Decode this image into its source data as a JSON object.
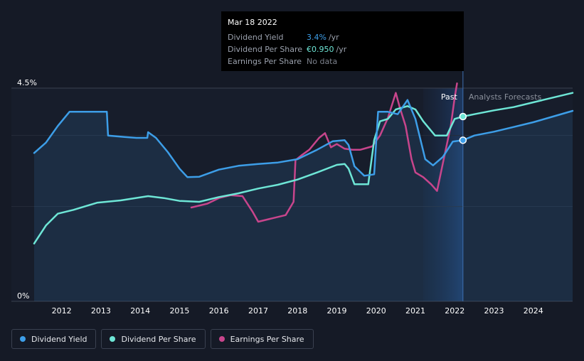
{
  "tooltip": {
    "date": "Mar 18 2022",
    "rows": [
      {
        "name": "Dividend Yield",
        "value": "3.4%",
        "unit": "/yr",
        "color": "#3d9ee8"
      },
      {
        "name": "Dividend Per Share",
        "value": "€0.950",
        "unit": "/yr",
        "color": "#6ee6d6"
      },
      {
        "name": "Earnings Per Share",
        "value": "No data",
        "unit": "",
        "color": "#7c818c"
      }
    ]
  },
  "regions": {
    "past": "Past",
    "forecast": "Analysts Forecasts"
  },
  "legend": [
    {
      "label": "Dividend Yield",
      "color": "#3d9ee8"
    },
    {
      "label": "Dividend Per Share",
      "color": "#6ee6d6"
    },
    {
      "label": "Earnings Per Share",
      "color": "#c8458c"
    }
  ],
  "chart_data": {
    "type": "line",
    "y_tick_labels": [
      "4.5%",
      "0%"
    ],
    "ylim": [
      0,
      4.5
    ],
    "x_tick_labels": [
      "2012",
      "2013",
      "2014",
      "2015",
      "2016",
      "2017",
      "2018",
      "2019",
      "2020",
      "2021",
      "2022",
      "2023",
      "2024"
    ],
    "xlim": [
      2011.3,
      2025.0
    ],
    "cursor_x": 2022.21,
    "forecast_start": 2022.21,
    "past_band_start": 2021.2,
    "series": [
      {
        "name": "Dividend Yield",
        "color": "#3d9ee8",
        "fill": true,
        "values": [
          [
            2011.3,
            3.13
          ],
          [
            2011.6,
            3.35
          ],
          [
            2011.9,
            3.7
          ],
          [
            2012.2,
            4.0
          ],
          [
            2012.5,
            4.0
          ],
          [
            2013.0,
            4.0
          ],
          [
            2013.15,
            4.0
          ],
          [
            2013.18,
            3.5
          ],
          [
            2013.6,
            3.47
          ],
          [
            2013.9,
            3.45
          ],
          [
            2014.18,
            3.45
          ],
          [
            2014.2,
            3.57
          ],
          [
            2014.4,
            3.45
          ],
          [
            2014.7,
            3.15
          ],
          [
            2015.0,
            2.8
          ],
          [
            2015.2,
            2.62
          ],
          [
            2015.5,
            2.63
          ],
          [
            2016.0,
            2.78
          ],
          [
            2016.5,
            2.86
          ],
          [
            2017.0,
            2.9
          ],
          [
            2017.5,
            2.93
          ],
          [
            2018.0,
            3.0
          ],
          [
            2018.5,
            3.2
          ],
          [
            2018.9,
            3.38
          ],
          [
            2019.2,
            3.4
          ],
          [
            2019.3,
            3.3
          ],
          [
            2019.45,
            2.85
          ],
          [
            2019.7,
            2.65
          ],
          [
            2019.95,
            2.68
          ],
          [
            2020.05,
            4.0
          ],
          [
            2020.3,
            4.0
          ],
          [
            2020.55,
            3.95
          ],
          [
            2020.8,
            4.25
          ],
          [
            2021.0,
            3.85
          ],
          [
            2021.25,
            3.0
          ],
          [
            2021.45,
            2.87
          ],
          [
            2021.7,
            3.05
          ],
          [
            2021.95,
            3.37
          ],
          [
            2022.21,
            3.4
          ],
          [
            2022.5,
            3.5
          ],
          [
            2023.0,
            3.58
          ],
          [
            2023.5,
            3.68
          ],
          [
            2024.0,
            3.78
          ],
          [
            2024.5,
            3.9
          ],
          [
            2025.0,
            4.02
          ]
        ]
      },
      {
        "name": "Dividend Per Share",
        "color": "#6ee6d6",
        "fill": false,
        "values": [
          [
            2011.3,
            1.22
          ],
          [
            2011.6,
            1.6
          ],
          [
            2011.9,
            1.85
          ],
          [
            2012.3,
            1.93
          ],
          [
            2012.9,
            2.08
          ],
          [
            2013.5,
            2.13
          ],
          [
            2014.2,
            2.22
          ],
          [
            2014.6,
            2.18
          ],
          [
            2015.0,
            2.12
          ],
          [
            2015.5,
            2.1
          ],
          [
            2016.0,
            2.2
          ],
          [
            2016.5,
            2.28
          ],
          [
            2017.0,
            2.38
          ],
          [
            2017.5,
            2.46
          ],
          [
            2018.0,
            2.57
          ],
          [
            2018.5,
            2.72
          ],
          [
            2019.0,
            2.88
          ],
          [
            2019.2,
            2.9
          ],
          [
            2019.3,
            2.8
          ],
          [
            2019.45,
            2.47
          ],
          [
            2019.8,
            2.47
          ],
          [
            2019.95,
            3.4
          ],
          [
            2020.1,
            3.8
          ],
          [
            2020.3,
            3.85
          ],
          [
            2020.5,
            4.05
          ],
          [
            2020.8,
            4.12
          ],
          [
            2021.0,
            4.05
          ],
          [
            2021.2,
            3.8
          ],
          [
            2021.5,
            3.5
          ],
          [
            2021.8,
            3.5
          ],
          [
            2022.0,
            3.85
          ],
          [
            2022.21,
            3.9
          ],
          [
            2022.5,
            3.95
          ],
          [
            2023.0,
            4.03
          ],
          [
            2023.5,
            4.1
          ],
          [
            2024.0,
            4.2
          ],
          [
            2024.5,
            4.3
          ],
          [
            2025.0,
            4.4
          ]
        ]
      },
      {
        "name": "Earnings Per Share",
        "color": "#c8458c",
        "fill": false,
        "values": [
          [
            2015.3,
            1.98
          ],
          [
            2015.7,
            2.06
          ],
          [
            2016.0,
            2.18
          ],
          [
            2016.3,
            2.24
          ],
          [
            2016.6,
            2.22
          ],
          [
            2016.85,
            1.9
          ],
          [
            2017.0,
            1.68
          ],
          [
            2017.3,
            1.74
          ],
          [
            2017.7,
            1.82
          ],
          [
            2017.9,
            2.1
          ],
          [
            2017.95,
            2.98
          ],
          [
            2018.1,
            3.08
          ],
          [
            2018.3,
            3.2
          ],
          [
            2018.55,
            3.45
          ],
          [
            2018.7,
            3.55
          ],
          [
            2018.85,
            3.25
          ],
          [
            2019.0,
            3.32
          ],
          [
            2019.2,
            3.22
          ],
          [
            2019.4,
            3.2
          ],
          [
            2019.6,
            3.2
          ],
          [
            2019.9,
            3.27
          ],
          [
            2020.1,
            3.5
          ],
          [
            2020.3,
            3.87
          ],
          [
            2020.5,
            4.4
          ],
          [
            2020.6,
            4.1
          ],
          [
            2020.75,
            3.7
          ],
          [
            2020.9,
            3.0
          ],
          [
            2021.0,
            2.72
          ],
          [
            2021.2,
            2.62
          ],
          [
            2021.4,
            2.47
          ],
          [
            2021.55,
            2.33
          ],
          [
            2021.7,
            2.92
          ],
          [
            2021.9,
            3.7
          ],
          [
            2022.0,
            4.3
          ],
          [
            2022.06,
            4.6
          ]
        ]
      }
    ]
  }
}
